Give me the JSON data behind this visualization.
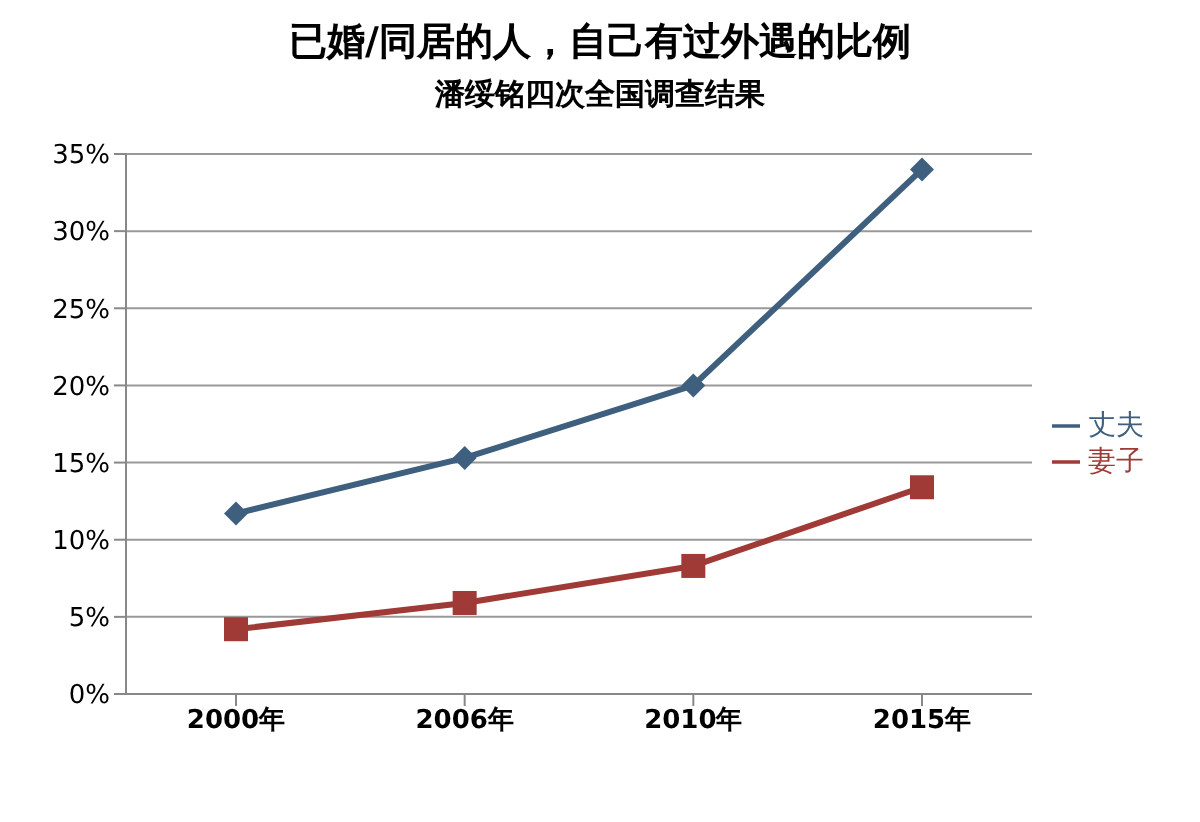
{
  "chart_data": {
    "type": "line",
    "title": "已婚/同居的人，自己有过外遇的比例",
    "subtitle": "潘绥铭四次全国调查结果",
    "categories": [
      "2000年",
      "2006年",
      "2010年",
      "2015年"
    ],
    "series": [
      {
        "name": "丈夫",
        "color": "#3f5f7f",
        "marker": "diamond",
        "values": [
          11.7,
          15.3,
          20.0,
          34.0
        ]
      },
      {
        "name": "妻子",
        "color": "#a03a36",
        "marker": "square",
        "values": [
          4.2,
          5.9,
          8.3,
          13.4
        ]
      }
    ],
    "ylim": [
      0,
      35
    ],
    "yticks": [
      {
        "value": 0,
        "label": "0%"
      },
      {
        "value": 5,
        "label": "5%"
      },
      {
        "value": 10,
        "label": "10%"
      },
      {
        "value": 15,
        "label": "15%"
      },
      {
        "value": 20,
        "label": "20%"
      },
      {
        "value": 25,
        "label": "25%"
      },
      {
        "value": 30,
        "label": "30%"
      },
      {
        "value": 35,
        "label": "35%"
      }
    ],
    "grid": "y",
    "legend": "right",
    "line_style": "solid"
  }
}
